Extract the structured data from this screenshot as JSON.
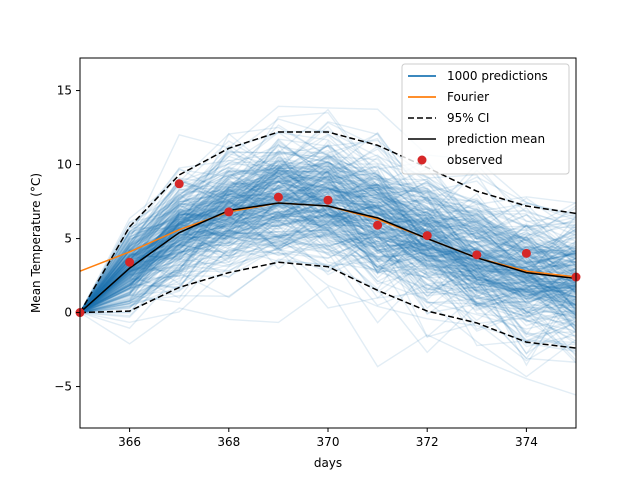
{
  "chart_data": {
    "type": "line",
    "title": "",
    "xlabel": "days",
    "ylabel": "Mean Temperature (°C)",
    "xlim": [
      365,
      375
    ],
    "ylim": [
      -7.8,
      17.2
    ],
    "x": [
      365,
      366,
      367,
      368,
      369,
      370,
      371,
      372,
      373,
      374,
      375
    ],
    "xticks": [
      366,
      368,
      370,
      372,
      374
    ],
    "yticks": [
      -5,
      0,
      5,
      10,
      15
    ],
    "grid": false,
    "legend_position": "top-right",
    "series": [
      {
        "name": "1000 predictions",
        "style": "band",
        "color": "#1f77b4",
        "values": [
          0.0,
          3.0,
          5.4,
          6.9,
          7.4,
          7.2,
          6.4,
          5.0,
          3.7,
          2.7,
          2.3
        ]
      },
      {
        "name": "Fourier",
        "style": "line",
        "color": "#ff7f0e",
        "x": [
          365,
          366,
          367,
          368,
          369,
          370,
          371,
          372,
          373,
          374,
          375
        ],
        "values": [
          2.8,
          4.1,
          5.6,
          6.8,
          7.4,
          7.2,
          6.3,
          5.0,
          3.7,
          2.8,
          2.4
        ]
      },
      {
        "name": "95% CI",
        "style": "dashed",
        "color": "#000000",
        "upper": [
          0.0,
          5.8,
          9.3,
          11.1,
          12.2,
          12.2,
          11.3,
          9.8,
          8.2,
          7.2,
          6.7
        ],
        "lower": [
          0.0,
          0.1,
          1.7,
          2.7,
          3.4,
          3.1,
          1.5,
          0.1,
          -0.7,
          -2.0,
          -2.4
        ]
      },
      {
        "name": "prediction mean",
        "style": "line",
        "color": "#000000",
        "values": [
          0.0,
          3.0,
          5.4,
          6.9,
          7.4,
          7.2,
          6.4,
          5.0,
          3.7,
          2.7,
          2.3
        ]
      },
      {
        "name": "observed",
        "style": "scatter",
        "color": "#d62728",
        "values": [
          0.0,
          3.4,
          8.7,
          6.8,
          7.8,
          7.6,
          5.9,
          5.2,
          3.9,
          4.0,
          2.4
        ]
      }
    ]
  }
}
